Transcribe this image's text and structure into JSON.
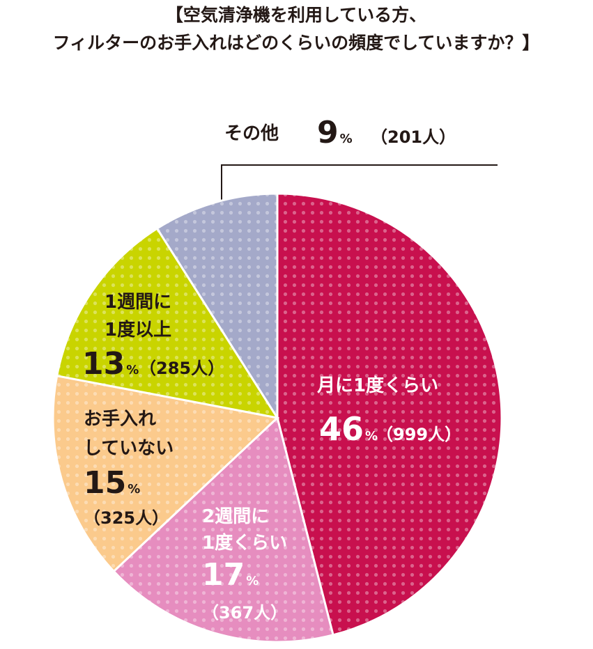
{
  "chart_data": {
    "type": "pie",
    "title": [
      "【空気清浄機を利用している方、",
      "フィルターのお手入れはどのくらいの頻度でしていますか？】"
    ],
    "categories": [
      "月に1度くらい",
      "2週間に\n1度くらい",
      "お手入れ\nしていない",
      "1週間に\n1度以上",
      "その他"
    ],
    "values": [
      46,
      17,
      15,
      13,
      9
    ],
    "value_labels": [
      "46%",
      "17%",
      "15%",
      "13%",
      "9%"
    ],
    "count_labels": [
      "（999人）",
      "（367人）",
      "（325人）",
      "（285人）",
      "（201人）"
    ],
    "colors": [
      "#c8104e",
      "#e68dbf",
      "#fbca8c",
      "#c9d400",
      "#a4a9c9"
    ]
  }
}
